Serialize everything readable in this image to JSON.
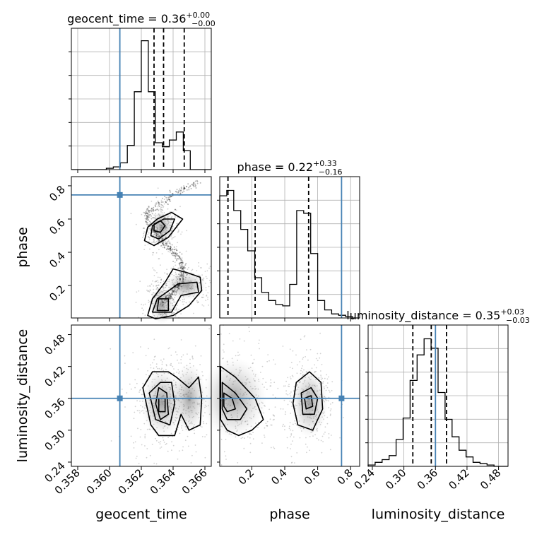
{
  "chart_data": {
    "type": "corner",
    "parameters": [
      {
        "name": "geocent_time",
        "truth": 0.36065,
        "range": [
          0.3576,
          0.3664
        ],
        "ticks": [
          0.358,
          0.36,
          0.362,
          0.364,
          0.366
        ],
        "tick_labels": [
          "0.358",
          "0.360",
          "0.362",
          "0.364",
          "0.366"
        ],
        "xlabel": "geocent_time",
        "title": {
          "main": "geocent_time = 0.36",
          "sup": "+0.00",
          "sub": "−0.00"
        },
        "quantiles": [
          0.3628,
          0.3634,
          0.3647
        ]
      },
      {
        "name": "phase",
        "truth": 0.745,
        "range": [
          0.005,
          0.855
        ],
        "ticks": [
          0.2,
          0.4,
          0.6,
          0.8
        ],
        "tick_labels": [
          "0.2",
          "0.4",
          "0.6",
          "0.8"
        ],
        "xlabel": "phase",
        "ylabel": "phase",
        "title": {
          "main": "phase = 0.22",
          "sup": "+0.33",
          "sub": "−0.16"
        },
        "quantiles": [
          0.055,
          0.22,
          0.545
        ]
      },
      {
        "name": "luminosity_distance",
        "truth": 0.36,
        "range": [
          0.232,
          0.498
        ],
        "ticks": [
          0.24,
          0.3,
          0.36,
          0.42,
          0.48
        ],
        "tick_labels": [
          "0.24",
          "0.30",
          "0.36",
          "0.42",
          "0.48"
        ],
        "xlabel": "luminosity_distance",
        "ylabel": "luminosity_distance",
        "title": {
          "main": "luminosity_distance = 0.35",
          "sup": "+0.03",
          "sub": "−0.03"
        },
        "quantiles": [
          0.317,
          0.352,
          0.381
        ]
      }
    ],
    "histograms": {
      "geocent_time": {
        "bin_start": 0.3576,
        "bin_width": 0.00044,
        "counts": [
          0,
          0,
          0,
          0,
          0,
          0.01,
          0.02,
          0.05,
          0.18,
          0.58,
          0.96,
          0.58,
          0.2,
          0.17,
          0.22,
          0.28,
          0.14,
          0,
          0,
          0
        ]
      },
      "phase": {
        "bin_start": 0.005,
        "bin_width": 0.0425,
        "counts": [
          0.91,
          0.95,
          0.8,
          0.66,
          0.5,
          0.3,
          0.19,
          0.13,
          0.1,
          0.09,
          0.25,
          0.8,
          0.78,
          0.48,
          0.13,
          0.06,
          0.03,
          0.02,
          0.01,
          0
        ]
      },
      "luminosity_distance": {
        "bin_start": 0.232,
        "bin_width": 0.0133,
        "counts": [
          0.01,
          0.03,
          0.05,
          0.08,
          0.2,
          0.36,
          0.64,
          0.83,
          0.95,
          0.88,
          0.55,
          0.35,
          0.22,
          0.12,
          0.07,
          0.03,
          0.02,
          0.01,
          0,
          0
        ]
      }
    },
    "contour_levels": 4,
    "truth_color": "#4682b4",
    "line_color": "#000000"
  }
}
